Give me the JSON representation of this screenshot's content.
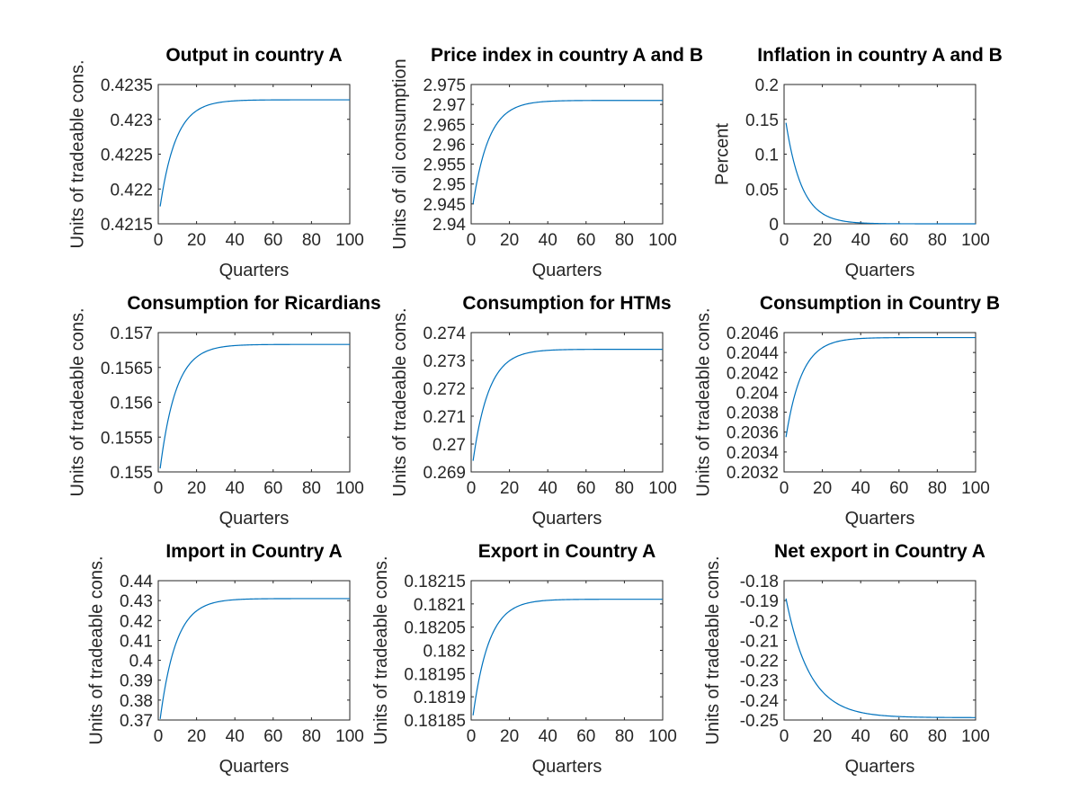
{
  "figure": {
    "line_color": "#0072bd",
    "background": "#ffffff"
  },
  "chart_data": [
    {
      "type": "line",
      "title": "Output in country A",
      "xlabel": "Quarters",
      "ylabel": "Units of tradeable cons.",
      "xlim": [
        0,
        100
      ],
      "ylim": [
        0.4215,
        0.4235
      ],
      "xticks": [
        "0",
        "20",
        "40",
        "60",
        "80",
        "100"
      ],
      "yticks": [
        "0.4215",
        "0.422",
        "0.4225",
        "0.423",
        "0.4235"
      ],
      "grid": false,
      "series": [
        {
          "start": 0.42175,
          "end": 0.42328,
          "rate": 0.12
        }
      ]
    },
    {
      "type": "line",
      "title": "Price index in country A and B",
      "xlabel": "Quarters",
      "ylabel": "Units of oil consumption",
      "xlim": [
        0,
        100
      ],
      "ylim": [
        2.94,
        2.975
      ],
      "xticks": [
        "0",
        "20",
        "40",
        "60",
        "80",
        "100"
      ],
      "yticks": [
        "2.94",
        "2.945",
        "2.95",
        "2.955",
        "2.96",
        "2.965",
        "2.97",
        "2.975"
      ],
      "grid": false,
      "series": [
        {
          "start": 2.945,
          "end": 2.971,
          "rate": 0.12
        }
      ]
    },
    {
      "type": "line",
      "title": "Inflation in country A and B",
      "xlabel": "Quarters",
      "ylabel": "Percent",
      "xlim": [
        0,
        100
      ],
      "ylim": [
        0,
        0.2
      ],
      "xticks": [
        "0",
        "20",
        "40",
        "60",
        "80",
        "100"
      ],
      "yticks": [
        "0",
        "0.05",
        "0.1",
        "0.15",
        "0.2"
      ],
      "grid": false,
      "series": [
        {
          "start": 0.145,
          "end": 0.0,
          "rate": 0.12
        }
      ]
    },
    {
      "type": "line",
      "title": "Consumption for Ricardians",
      "xlabel": "Quarters",
      "ylabel": "Units of tradeable cons.",
      "xlim": [
        0,
        100
      ],
      "ylim": [
        0.155,
        0.157
      ],
      "xticks": [
        "0",
        "20",
        "40",
        "60",
        "80",
        "100"
      ],
      "yticks": [
        "0.155",
        "0.1555",
        "0.156",
        "0.1565",
        "0.157"
      ],
      "grid": false,
      "series": [
        {
          "start": 0.15505,
          "end": 0.15683,
          "rate": 0.12
        }
      ]
    },
    {
      "type": "line",
      "title": "Consumption for HTMs",
      "xlabel": "Quarters",
      "ylabel": "Units of tradeable cons.",
      "xlim": [
        0,
        100
      ],
      "ylim": [
        0.269,
        0.274
      ],
      "xticks": [
        "0",
        "20",
        "40",
        "60",
        "80",
        "100"
      ],
      "yticks": [
        "0.269",
        "0.27",
        "0.271",
        "0.272",
        "0.273",
        "0.274"
      ],
      "grid": false,
      "series": [
        {
          "start": 0.2694,
          "end": 0.2734,
          "rate": 0.12
        }
      ]
    },
    {
      "type": "line",
      "title": "Consumption in Country B",
      "xlabel": "Quarters",
      "ylabel": "Units of tradeable cons.",
      "xlim": [
        0,
        100
      ],
      "ylim": [
        0.2032,
        0.2046
      ],
      "xticks": [
        "0",
        "20",
        "40",
        "60",
        "80",
        "100"
      ],
      "yticks": [
        "0.2032",
        "0.2034",
        "0.2036",
        "0.2038",
        "0.204",
        "0.2042",
        "0.2044",
        "0.2046"
      ],
      "grid": false,
      "series": [
        {
          "start": 0.20355,
          "end": 0.20455,
          "rate": 0.12
        }
      ]
    },
    {
      "type": "line",
      "title": "Import in Country A",
      "xlabel": "Quarters",
      "ylabel": "Units of tradeable cons.",
      "xlim": [
        0,
        100
      ],
      "ylim": [
        0.37,
        0.44
      ],
      "xticks": [
        "0",
        "20",
        "40",
        "60",
        "80",
        "100"
      ],
      "yticks": [
        "0.37",
        "0.38",
        "0.39",
        "0.4",
        "0.41",
        "0.42",
        "0.43",
        "0.44"
      ],
      "grid": false,
      "series": [
        {
          "start": 0.3705,
          "end": 0.431,
          "rate": 0.12
        }
      ]
    },
    {
      "type": "line",
      "title": "Export in Country A",
      "xlabel": "Quarters",
      "ylabel": "Units of tradeable cons.",
      "xlim": [
        0,
        100
      ],
      "ylim": [
        0.18185,
        0.18215
      ],
      "xticks": [
        "0",
        "20",
        "40",
        "60",
        "80",
        "100"
      ],
      "yticks": [
        "0.18185",
        "0.1819",
        "0.18195",
        "0.182",
        "0.18205",
        "0.1821",
        "0.18215"
      ],
      "grid": false,
      "series": [
        {
          "start": 0.18186,
          "end": 0.18211,
          "rate": 0.12
        }
      ]
    },
    {
      "type": "line",
      "title": "Net export in Country A",
      "xlabel": "Quarters",
      "ylabel": "Units of tradeable cons.",
      "xlim": [
        0,
        100
      ],
      "ylim": [
        -0.25,
        -0.18
      ],
      "xticks": [
        "0",
        "20",
        "40",
        "60",
        "80",
        "100"
      ],
      "yticks": [
        "-0.25",
        "-0.24",
        "-0.23",
        "-0.22",
        "-0.21",
        "-0.2",
        "-0.19",
        "-0.18"
      ],
      "grid": false,
      "series": [
        {
          "start": -0.189,
          "end": -0.2488,
          "rate": 0.08
        }
      ]
    }
  ]
}
